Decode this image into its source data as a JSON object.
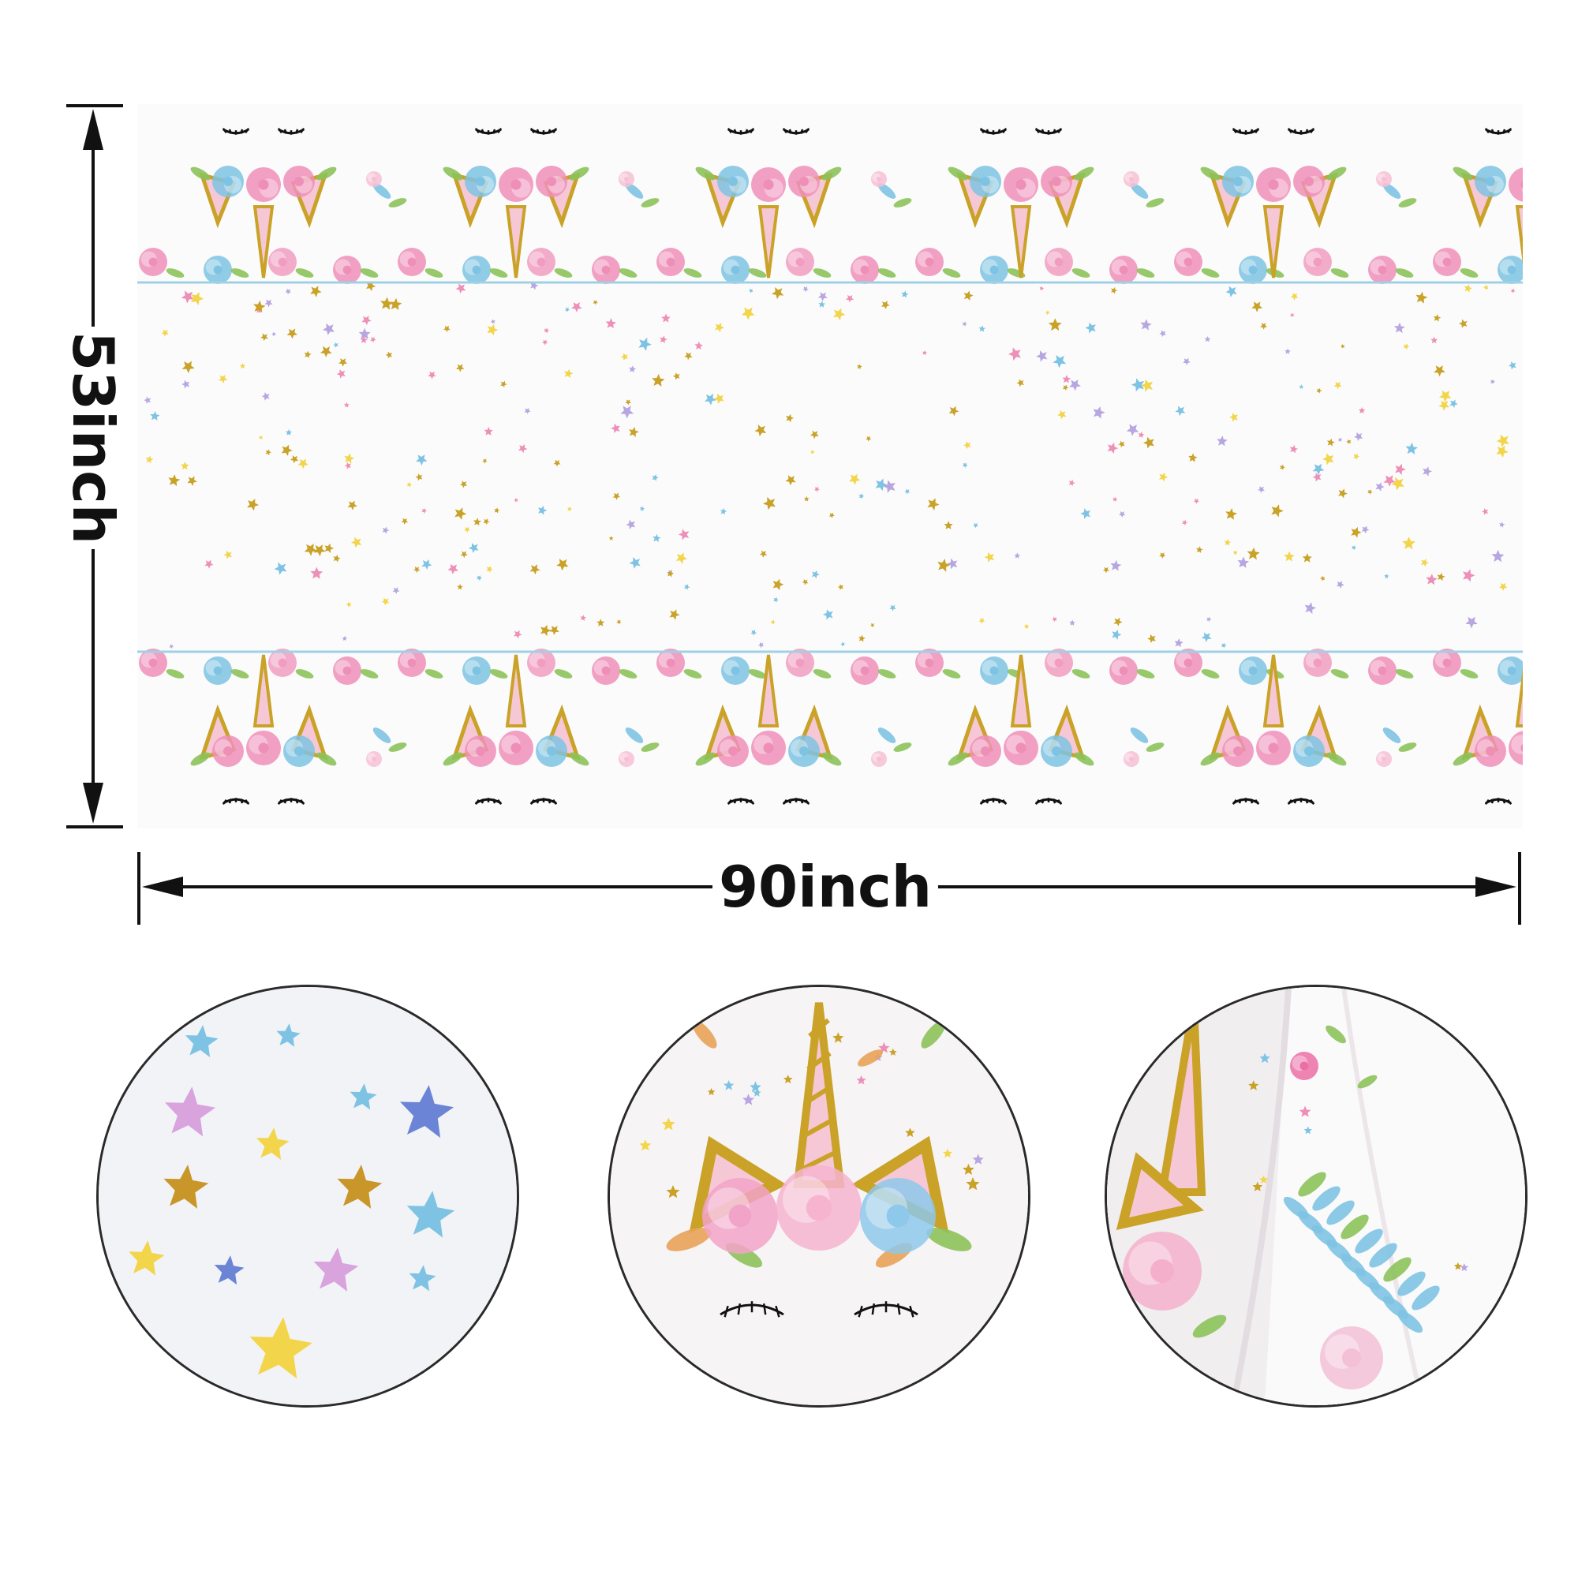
{
  "dimensions": {
    "height_label": "53inch",
    "width_label": "90inch"
  },
  "palette": {
    "gold": "#c9a227",
    "pink": "#ee8fb8",
    "blue": "#7ec3e3",
    "green": "#8cc25a",
    "yellow": "#f3d54b",
    "lavender": "#b7a6e0"
  },
  "tablecloth": {
    "pattern": "unicorn-face-border",
    "top_border_repeats": 6,
    "bottom_border_repeats": 6,
    "field": "scattered-stars"
  },
  "detail_views": [
    {
      "name": "stars-closeup"
    },
    {
      "name": "unicorn-face-closeup"
    },
    {
      "name": "draped-tablecloth-closeup"
    }
  ]
}
